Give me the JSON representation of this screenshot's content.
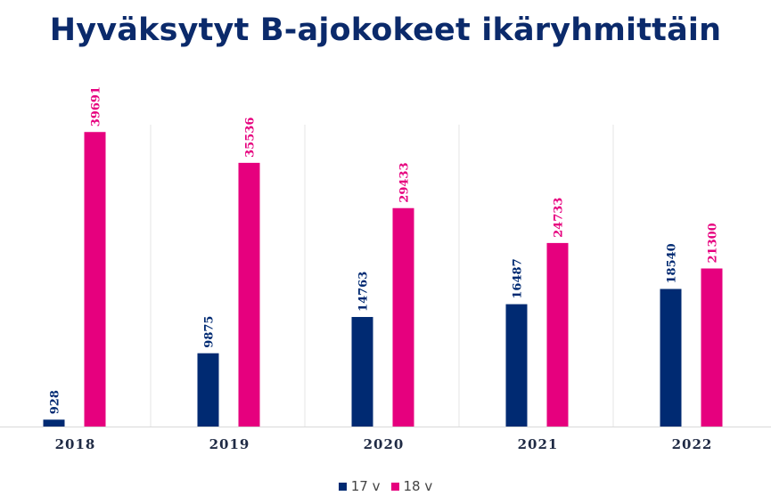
{
  "chart_data": {
    "type": "bar",
    "title": "Hyväksytyt B-ajokokeet ikäryhmittäin",
    "categories": [
      "2018",
      "2019",
      "2020",
      "2021",
      "2022"
    ],
    "series": [
      {
        "name": "17 v",
        "values": [
          928,
          9875,
          14763,
          16487,
          18540
        ],
        "color": "#002a72"
      },
      {
        "name": "18 v",
        "values": [
          39691,
          35536,
          29433,
          24733,
          21300
        ],
        "color": "#e6007e"
      }
    ],
    "xlabel": "",
    "ylabel": "",
    "ylim": [
      0,
      40000
    ],
    "grid": "vertical separators only",
    "legend": "bottom-center"
  }
}
